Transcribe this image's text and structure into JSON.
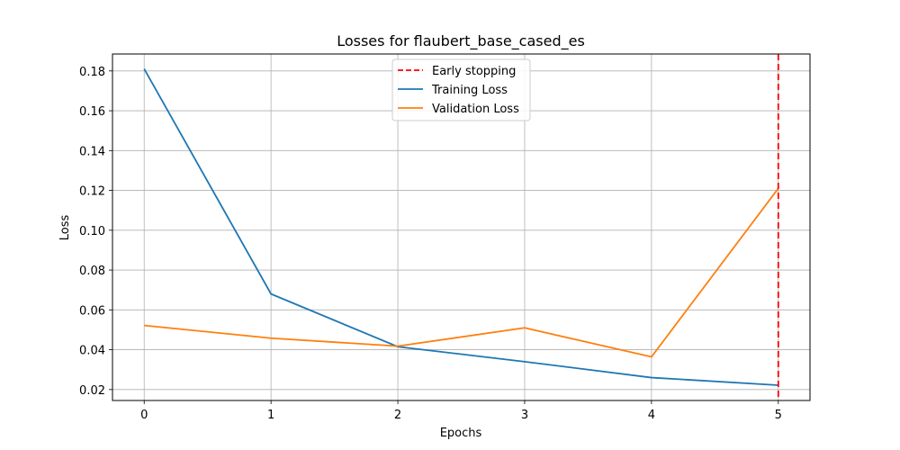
{
  "chart_data": {
    "type": "line",
    "title": "Losses for flaubert_base_cased_es",
    "xlabel": "Epochs",
    "ylabel": "Loss",
    "x": [
      0,
      1,
      2,
      3,
      4,
      5
    ],
    "xticks": [
      0,
      1,
      2,
      3,
      4,
      5
    ],
    "xlim": [
      -0.25,
      5.25
    ],
    "ylim": [
      0.0145,
      0.1885
    ],
    "yticks": [
      0.02,
      0.04,
      0.06,
      0.08,
      0.1,
      0.12,
      0.14,
      0.16,
      0.18
    ],
    "ytick_labels": [
      "0.02",
      "0.04",
      "0.06",
      "0.08",
      "0.10",
      "0.12",
      "0.14",
      "0.16",
      "0.18"
    ],
    "grid": true,
    "legend_position": "top-center",
    "series": [
      {
        "name": "Training Loss",
        "color": "#1f77b4",
        "values": [
          0.181,
          0.068,
          0.0415,
          0.034,
          0.026,
          0.0222
        ]
      },
      {
        "name": "Validation Loss",
        "color": "#ff7f0e",
        "values": [
          0.0522,
          0.0458,
          0.0418,
          0.051,
          0.0364,
          0.121
        ]
      }
    ],
    "early_stopping": {
      "name": "Early stopping",
      "x": 5,
      "color": "#ff0000",
      "style": "dashed"
    }
  }
}
